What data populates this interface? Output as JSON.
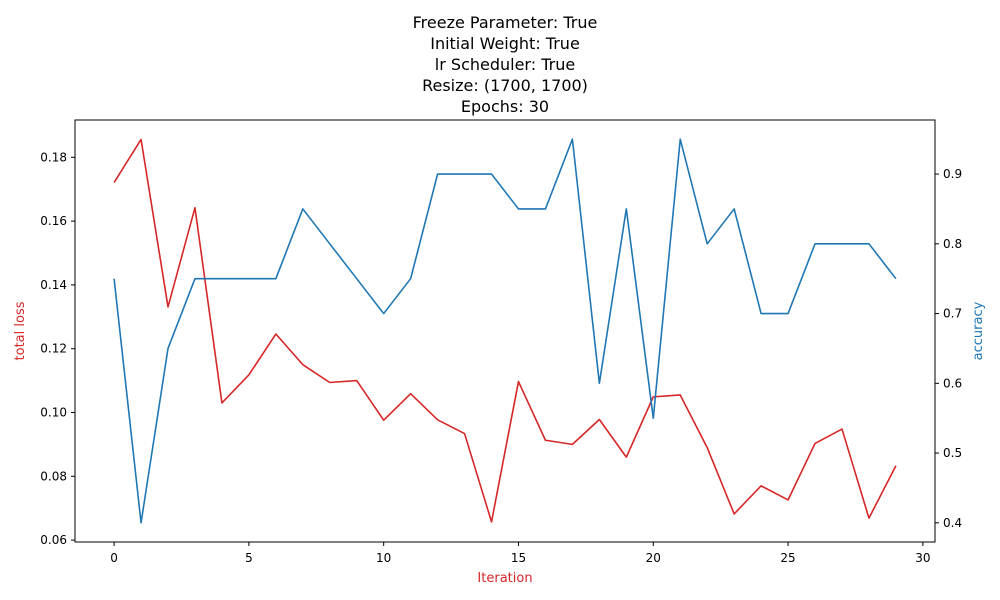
{
  "chart_data": {
    "type": "line",
    "title_lines": [
      "Freeze Parameter: True",
      "Initial Weight: True",
      "lr Scheduler: True",
      "Resize: (1700, 1700)",
      "Epochs: 30"
    ],
    "xlabel": "Iteration",
    "y_left_label": "total loss",
    "y_right_label": "accuracy",
    "x": [
      0,
      1,
      2,
      3,
      4,
      5,
      6,
      7,
      8,
      9,
      10,
      11,
      12,
      13,
      14,
      15,
      16,
      17,
      18,
      19,
      20,
      21,
      22,
      23,
      24,
      25,
      26,
      27,
      28,
      29
    ],
    "xlim": [
      -1.45,
      30.45
    ],
    "x_ticks": [
      0,
      5,
      10,
      15,
      20,
      25,
      30
    ],
    "y_left_lim": [
      0.0594,
      0.1917
    ],
    "y_left_ticks": [
      0.06,
      0.08,
      0.1,
      0.12,
      0.14,
      0.16,
      0.18
    ],
    "y_left_tick_labels": [
      "0.06",
      "0.08",
      "0.10",
      "0.12",
      "0.14",
      "0.16",
      "0.18"
    ],
    "y_right_lim": [
      0.3725,
      0.9775
    ],
    "y_right_ticks": [
      0.4,
      0.5,
      0.6,
      0.7,
      0.8,
      0.9
    ],
    "y_right_tick_labels": [
      "0.4",
      "0.5",
      "0.6",
      "0.7",
      "0.8",
      "0.9"
    ],
    "x_tick_labels": [
      "0",
      "5",
      "10",
      "15",
      "20",
      "25",
      "30"
    ],
    "series": [
      {
        "axis": "left",
        "color": "#d62728",
        "values": [
          0.1721,
          0.1856,
          0.1331,
          0.1642,
          0.103,
          0.1118,
          0.1246,
          0.115,
          0.1094,
          0.11,
          0.0976,
          0.1059,
          0.0977,
          0.0934,
          0.0657,
          0.1097,
          0.0913,
          0.09,
          0.0978,
          0.086,
          0.1049,
          0.1055,
          0.089,
          0.0682,
          0.077,
          0.0726,
          0.0903,
          0.0948,
          0.0669,
          0.0833
        ]
      },
      {
        "axis": "right",
        "color": "#1f77b4",
        "values": [
          0.75,
          0.4,
          0.65,
          0.75,
          0.75,
          0.75,
          0.75,
          0.85,
          0.8,
          0.75,
          0.7,
          0.75,
          0.9,
          0.9,
          0.9,
          0.85,
          0.85,
          0.95,
          0.6,
          0.85,
          0.55,
          0.95,
          0.8,
          0.85,
          0.7,
          0.7,
          0.8,
          0.8,
          0.8,
          0.75
        ]
      }
    ],
    "colors": {
      "left_axis": "#d62728",
      "right_axis": "#1f77b4"
    }
  }
}
